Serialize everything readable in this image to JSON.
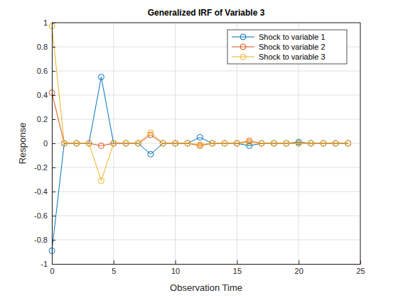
{
  "chart_data": {
    "type": "line",
    "title": "Generalized IRF of Variable 3",
    "x_label": "Observation Time",
    "y_label": "Response",
    "x": [
      0,
      1,
      2,
      3,
      4,
      5,
      6,
      7,
      8,
      9,
      10,
      11,
      12,
      13,
      14,
      15,
      16,
      17,
      18,
      19,
      20,
      21,
      22,
      23,
      24
    ],
    "series": [
      {
        "name": "Shock to variable 1",
        "color": "#0072bd",
        "values": [
          -0.89,
          0,
          0,
          0,
          0.55,
          0,
          0,
          0,
          -0.09,
          0,
          0,
          0,
          0.05,
          0,
          0,
          0,
          -0.02,
          0,
          0,
          0,
          0.01,
          0,
          0,
          0,
          0
        ]
      },
      {
        "name": "Shock to variable 2",
        "color": "#d95319",
        "values": [
          0.42,
          0,
          0,
          0,
          -0.02,
          0,
          0,
          0,
          0.07,
          0,
          0,
          0,
          -0.02,
          0,
          0,
          0,
          0.02,
          0,
          0,
          0,
          0,
          0,
          0,
          0,
          0
        ]
      },
      {
        "name": "Shock to variable 3",
        "color": "#edb120",
        "values": [
          0.97,
          0,
          0,
          0,
          -0.31,
          0,
          0,
          0,
          0.09,
          0,
          0,
          0,
          -0.01,
          0,
          0,
          0,
          0.01,
          0,
          0,
          0,
          0,
          0,
          0,
          0,
          0
        ]
      }
    ],
    "xlim": [
      0,
      25
    ],
    "xticks": [
      0,
      5,
      10,
      15,
      20,
      25
    ],
    "ylim": [
      -1,
      1
    ],
    "yticks": [
      -1,
      -0.8,
      -0.6,
      -0.4,
      -0.2,
      0,
      0.2,
      0.4,
      0.6,
      0.8,
      1
    ],
    "grid": true,
    "legend": "northeast",
    "marker": "circle",
    "line_style": "solid"
  }
}
